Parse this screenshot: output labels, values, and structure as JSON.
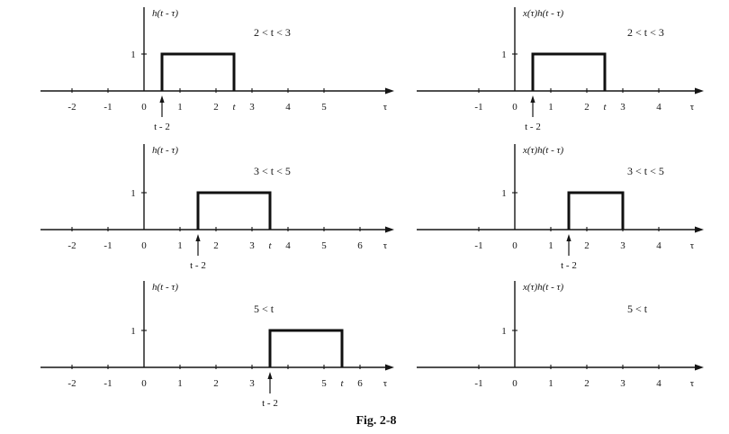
{
  "figure": {
    "caption": "Fig. 2-8",
    "panels": [
      {
        "ylabel": "h(t - τ)",
        "condition": "2 < t < 3",
        "xlabel": "τ",
        "unit_label": "1",
        "ticks": [
          {
            "value": -2,
            "label": "-2"
          },
          {
            "value": -1,
            "label": "-1"
          },
          {
            "value": 0,
            "label": "0"
          },
          {
            "value": 1,
            "label": "1"
          },
          {
            "value": 2,
            "label": "2"
          },
          {
            "value": 2.5,
            "label": "t"
          },
          {
            "value": 3,
            "label": "3"
          },
          {
            "value": 4,
            "label": "4"
          },
          {
            "value": 5,
            "label": "5"
          }
        ],
        "pulse": {
          "start": 0.5,
          "end": 2.5,
          "height": 1
        },
        "shift_marker": {
          "value": 0.5,
          "label": "t - 2"
        }
      },
      {
        "ylabel": "x(τ)h(t - τ)",
        "condition": "2 < t < 3",
        "xlabel": "τ",
        "unit_label": "1",
        "ticks": [
          {
            "value": -1,
            "label": "-1"
          },
          {
            "value": 0,
            "label": "0"
          },
          {
            "value": 1,
            "label": "1"
          },
          {
            "value": 2,
            "label": "2"
          },
          {
            "value": 2.5,
            "label": "t"
          },
          {
            "value": 3,
            "label": "3"
          },
          {
            "value": 4,
            "label": "4"
          }
        ],
        "pulse": {
          "start": 0.5,
          "end": 2.5,
          "height": 1
        },
        "shift_marker": {
          "value": 0.5,
          "label": "t - 2"
        }
      },
      {
        "ylabel": "h(t - τ)",
        "condition": "3 < t < 5",
        "xlabel": "τ",
        "unit_label": "1",
        "ticks": [
          {
            "value": -2,
            "label": "-2"
          },
          {
            "value": -1,
            "label": "-1"
          },
          {
            "value": 0,
            "label": "0"
          },
          {
            "value": 1,
            "label": "1"
          },
          {
            "value": 2,
            "label": "2"
          },
          {
            "value": 3,
            "label": "3"
          },
          {
            "value": 3.5,
            "label": "t"
          },
          {
            "value": 4,
            "label": "4"
          },
          {
            "value": 5,
            "label": "5"
          },
          {
            "value": 6,
            "label": "6"
          }
        ],
        "pulse": {
          "start": 1.5,
          "end": 3.5,
          "height": 1
        },
        "shift_marker": {
          "value": 1.5,
          "label": "t - 2"
        }
      },
      {
        "ylabel": "x(τ)h(t - τ)",
        "condition": "3 < t < 5",
        "xlabel": "τ",
        "unit_label": "1",
        "ticks": [
          {
            "value": -1,
            "label": "-1"
          },
          {
            "value": 0,
            "label": "0"
          },
          {
            "value": 1,
            "label": "1"
          },
          {
            "value": 2,
            "label": "2"
          },
          {
            "value": 3,
            "label": "3"
          },
          {
            "value": 4,
            "label": "4"
          }
        ],
        "pulse": {
          "start": 1.5,
          "end": 3,
          "height": 1
        },
        "shift_marker": {
          "value": 1.5,
          "label": "t - 2"
        }
      },
      {
        "ylabel": "h(t - τ)",
        "condition": "5 < t",
        "xlabel": "τ",
        "unit_label": "1",
        "ticks": [
          {
            "value": -2,
            "label": "-2"
          },
          {
            "value": -1,
            "label": "-1"
          },
          {
            "value": 0,
            "label": "0"
          },
          {
            "value": 1,
            "label": "1"
          },
          {
            "value": 2,
            "label": "2"
          },
          {
            "value": 3,
            "label": "3"
          },
          {
            "value": 5,
            "label": "5"
          },
          {
            "value": 5.5,
            "label": "t"
          },
          {
            "value": 6,
            "label": "6"
          }
        ],
        "pulse": {
          "start": 3.5,
          "end": 5.5,
          "height": 1
        },
        "shift_marker": {
          "value": 3.5,
          "label": "t - 2"
        }
      },
      {
        "ylabel": "x(τ)h(t - τ)",
        "condition": "5 < t",
        "xlabel": "τ",
        "unit_label": "1",
        "ticks": [
          {
            "value": -1,
            "label": "-1"
          },
          {
            "value": 0,
            "label": "0"
          },
          {
            "value": 1,
            "label": "1"
          },
          {
            "value": 2,
            "label": "2"
          },
          {
            "value": 3,
            "label": "3"
          },
          {
            "value": 4,
            "label": "4"
          }
        ],
        "pulse": null,
        "shift_marker": null
      }
    ]
  }
}
